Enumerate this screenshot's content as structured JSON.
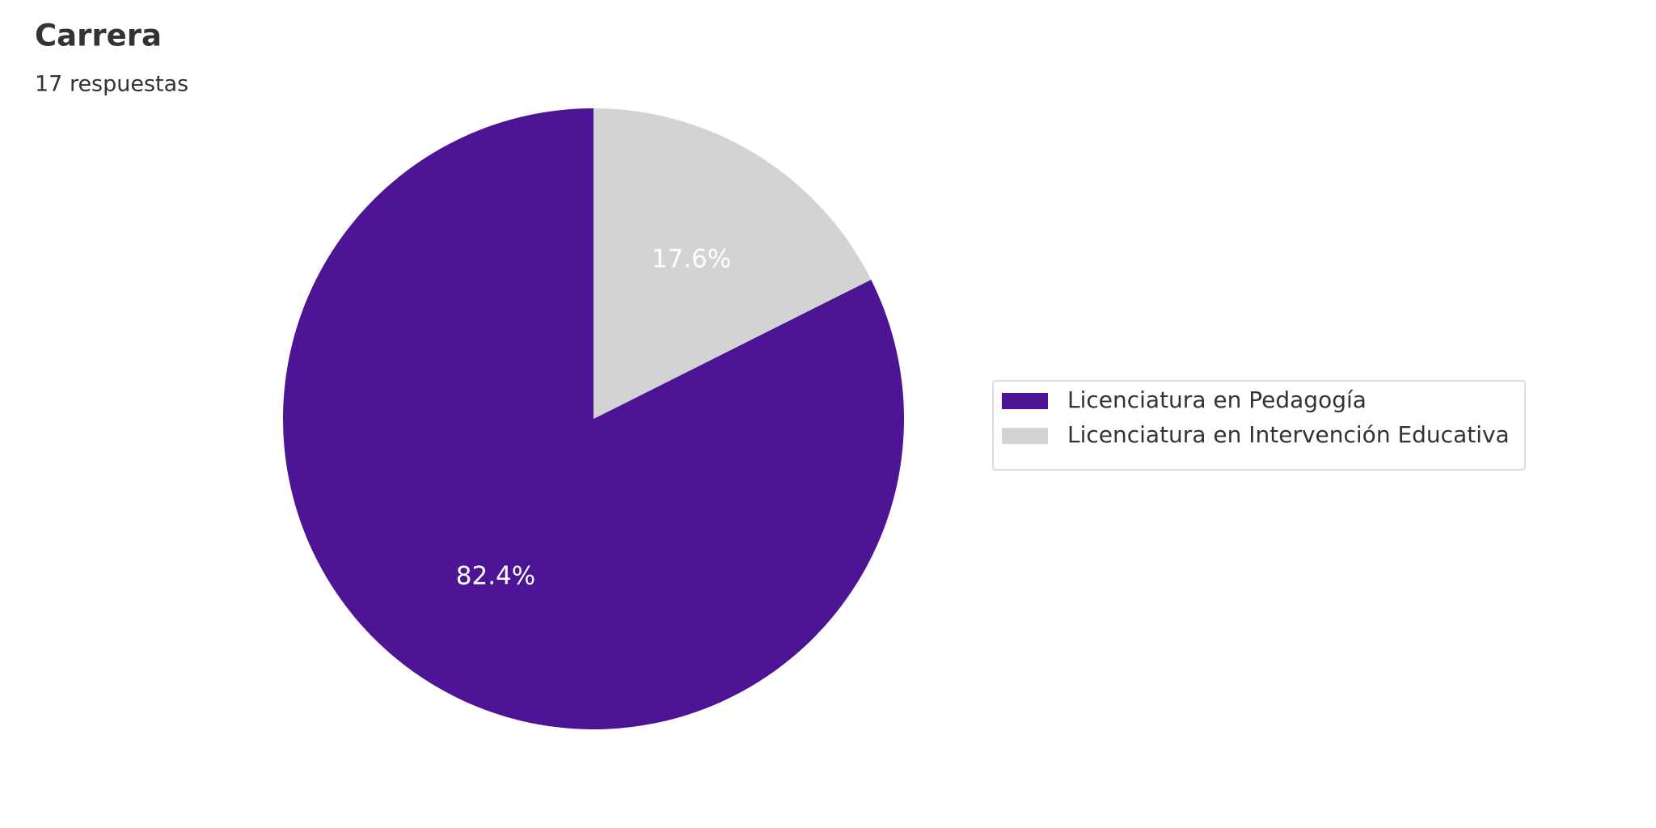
{
  "chart_data": {
    "type": "pie",
    "title": "Carrera",
    "subtitle": "17 respuestas",
    "categories": [
      "Licenciatura en Pedagogía",
      "Licenciatura en Intervención Educativa"
    ],
    "values": [
      82.4,
      17.6
    ],
    "value_labels": [
      "82.4%",
      "17.6%"
    ],
    "colors": [
      "#4d1495",
      "#d3d3d3"
    ],
    "legend": "right"
  }
}
